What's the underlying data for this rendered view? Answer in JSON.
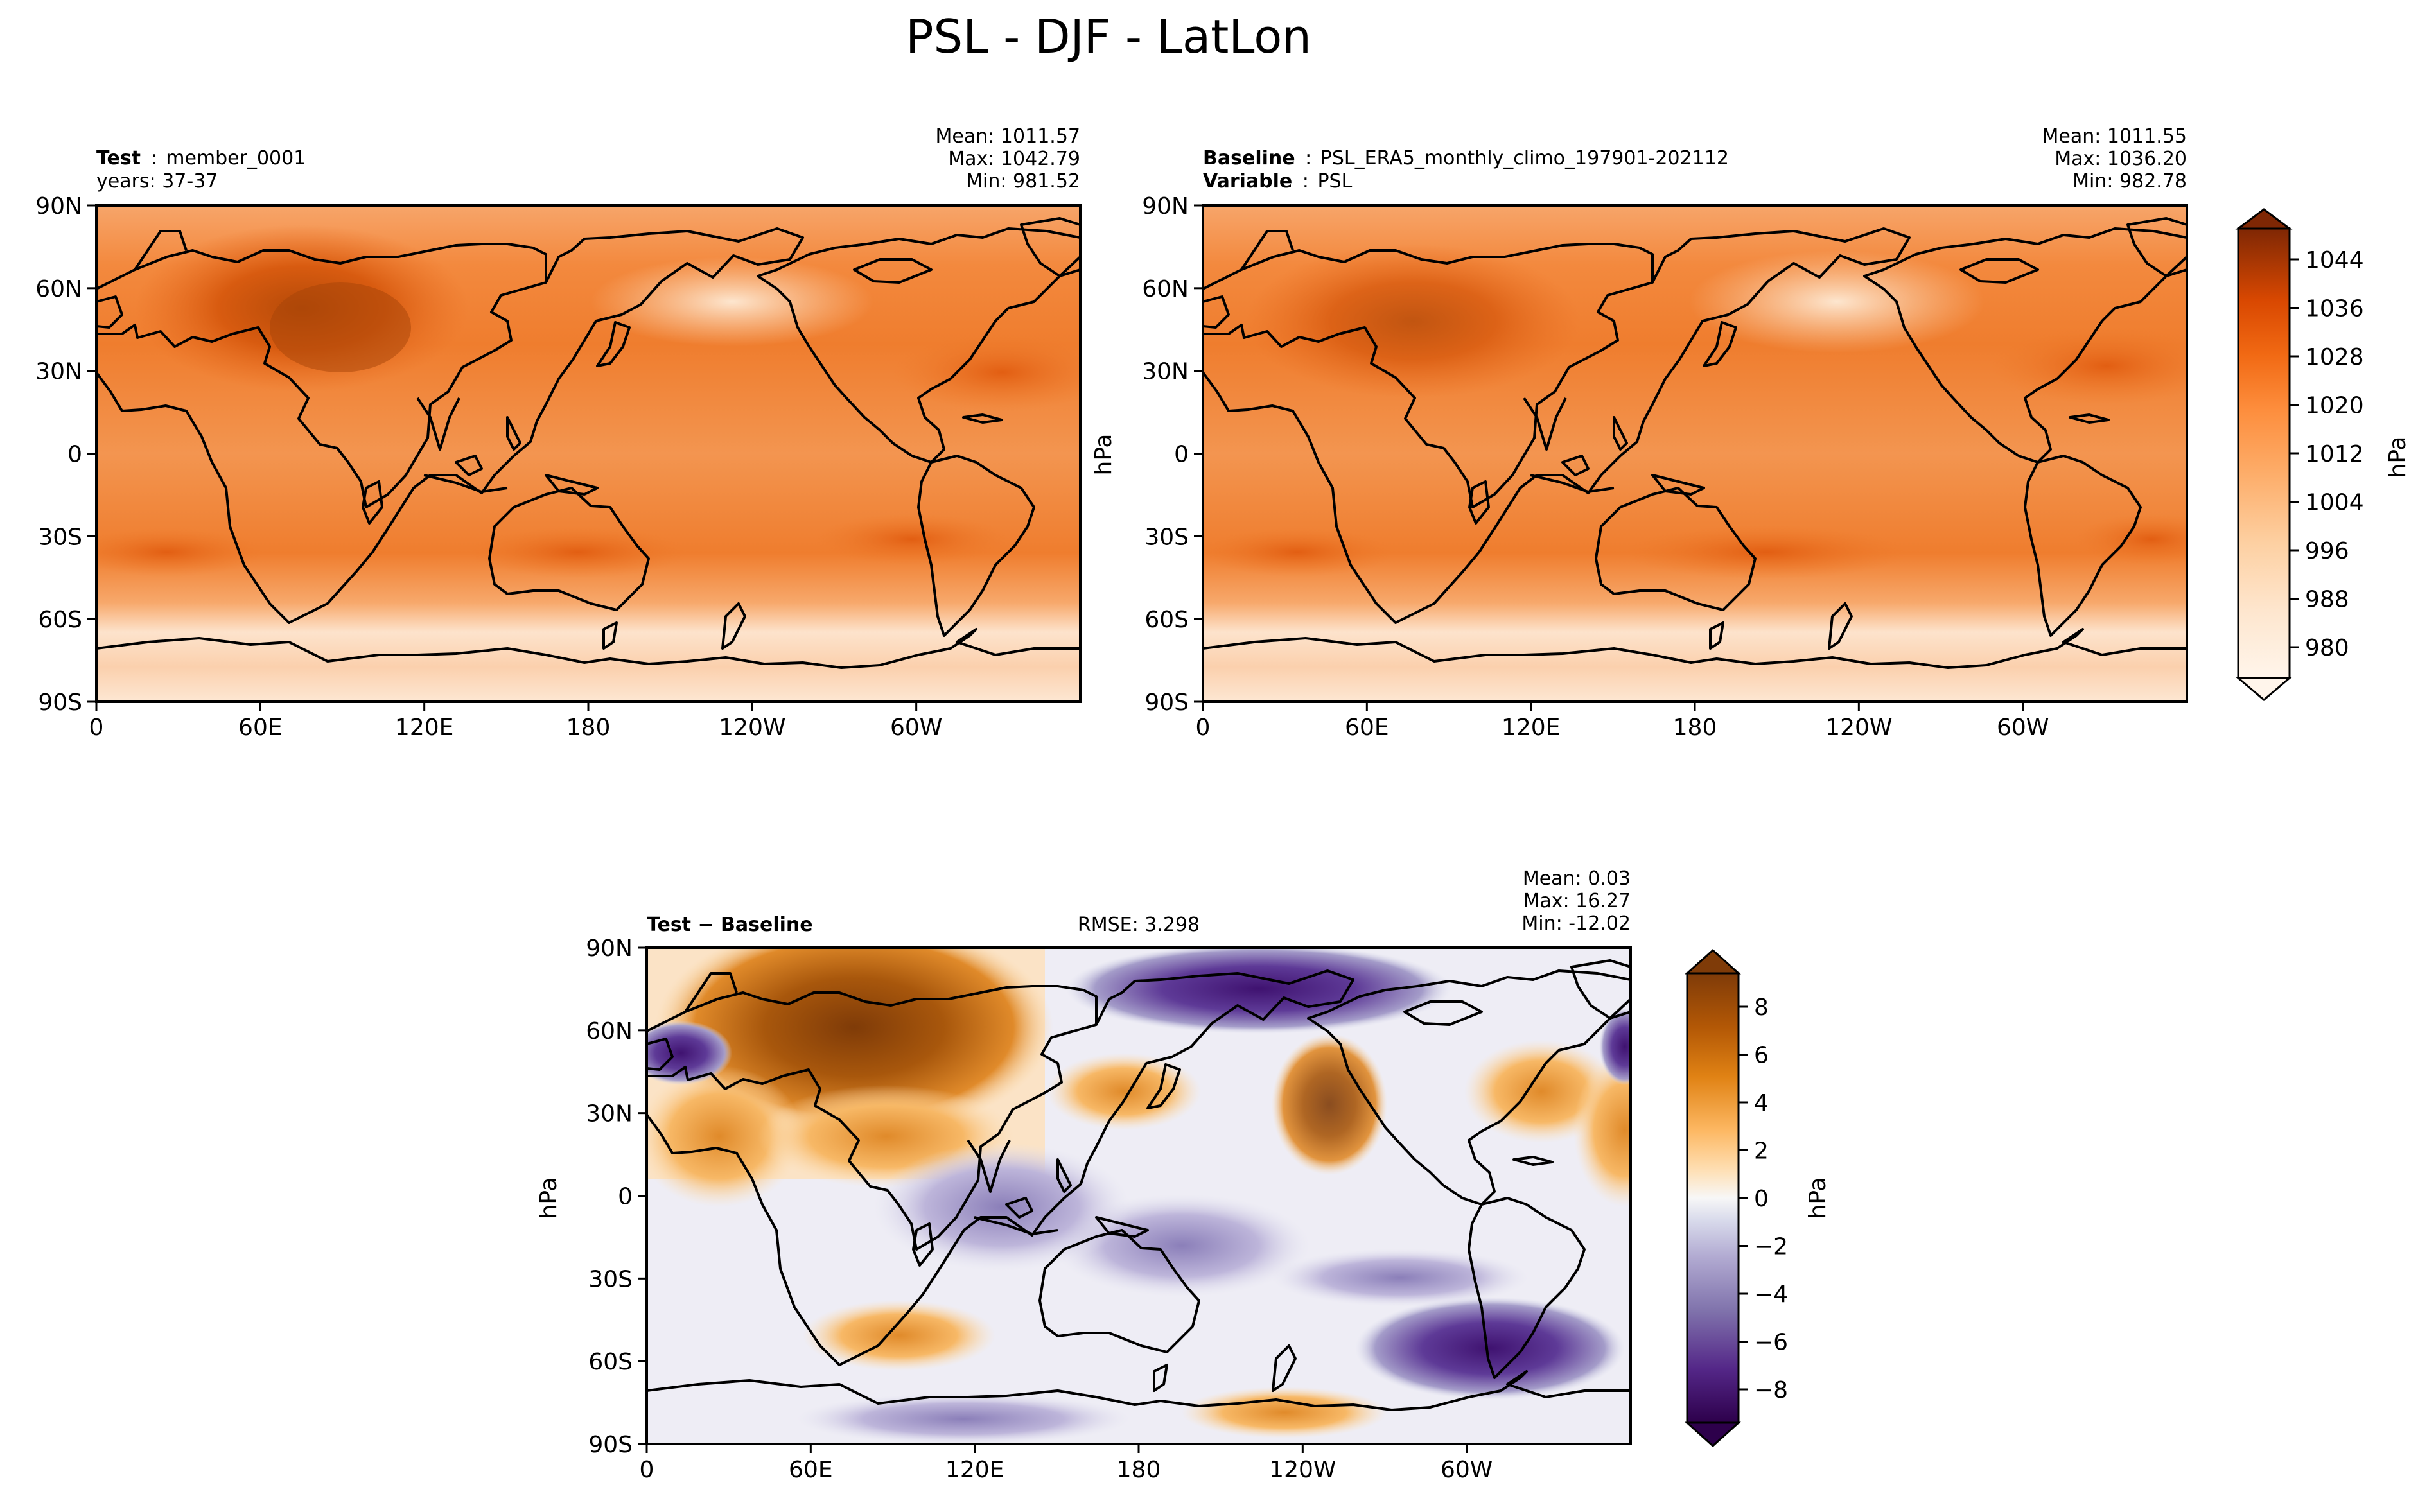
{
  "figure_title": "PSL - DJF - LatLon",
  "colors": {
    "psl_scale": [
      "#fff5eb",
      "#fee6ce",
      "#fdd0a2",
      "#fdae6b",
      "#fd8d3c",
      "#f16913",
      "#d94801",
      "#a63603",
      "#7f2704"
    ],
    "diff_scale": [
      "#2d004b",
      "#542788",
      "#8073ac",
      "#b2abd2",
      "#d8daeb",
      "#f7f7f7",
      "#fee0b6",
      "#fdb863",
      "#e08214",
      "#b35806",
      "#7f3b08"
    ]
  },
  "icons": {
    "map_background": "world-map-coastline-icon"
  },
  "chart_data": [
    {
      "type": "heatmap",
      "panel": "test",
      "title_label": "Test",
      "title_value": "member_0001",
      "subtitle": "years: 37-37",
      "stats": {
        "mean": "Mean: 1011.57",
        "max": "Max: 1042.79",
        "min": "Min: 981.52"
      },
      "xticks": [
        "0",
        "60E",
        "120E",
        "180",
        "120W",
        "60W"
      ],
      "yticks": [
        "90N",
        "60N",
        "30N",
        "0",
        "30S",
        "60S",
        "90S"
      ],
      "units": "hPa",
      "zlim": [
        980,
        1046
      ]
    },
    {
      "type": "heatmap",
      "panel": "baseline",
      "title_label": "Baseline",
      "title_value": "PSL_ERA5_monthly_climo_197901-202112",
      "subtitle_label": "Variable",
      "subtitle_value": "PSL",
      "stats": {
        "mean": "Mean: 1011.55",
        "max": "Max: 1036.20",
        "min": "Min: 982.78"
      },
      "xticks": [
        "0",
        "60E",
        "120E",
        "180",
        "120W",
        "60W"
      ],
      "yticks": [
        "90N",
        "60N",
        "30N",
        "0",
        "30S",
        "60S",
        "90S"
      ],
      "ylabel": "hPa",
      "colorbar": {
        "ticks": [
          "1044",
          "1036",
          "1028",
          "1020",
          "1012",
          "1004",
          "996",
          "988",
          "980"
        ],
        "label": "hPa"
      }
    },
    {
      "type": "heatmap",
      "panel": "difference",
      "title_label": "Test − Baseline",
      "rmse": "RMSE: 3.298",
      "stats": {
        "mean": "Mean:  0.03",
        "max": "Max: 16.27",
        "min": "Min: -12.02"
      },
      "xticks": [
        "0",
        "60E",
        "120E",
        "180",
        "120W",
        "60W"
      ],
      "yticks": [
        "90N",
        "60N",
        "30N",
        "0",
        "30S",
        "60S",
        "90S"
      ],
      "ylabel": "hPa",
      "colorbar": {
        "ticks": [
          "8",
          "6",
          "4",
          "2",
          "0",
          "−2",
          "−4",
          "−6",
          "−8"
        ],
        "label": "hPa"
      },
      "zlim": [
        -9,
        9
      ]
    }
  ]
}
